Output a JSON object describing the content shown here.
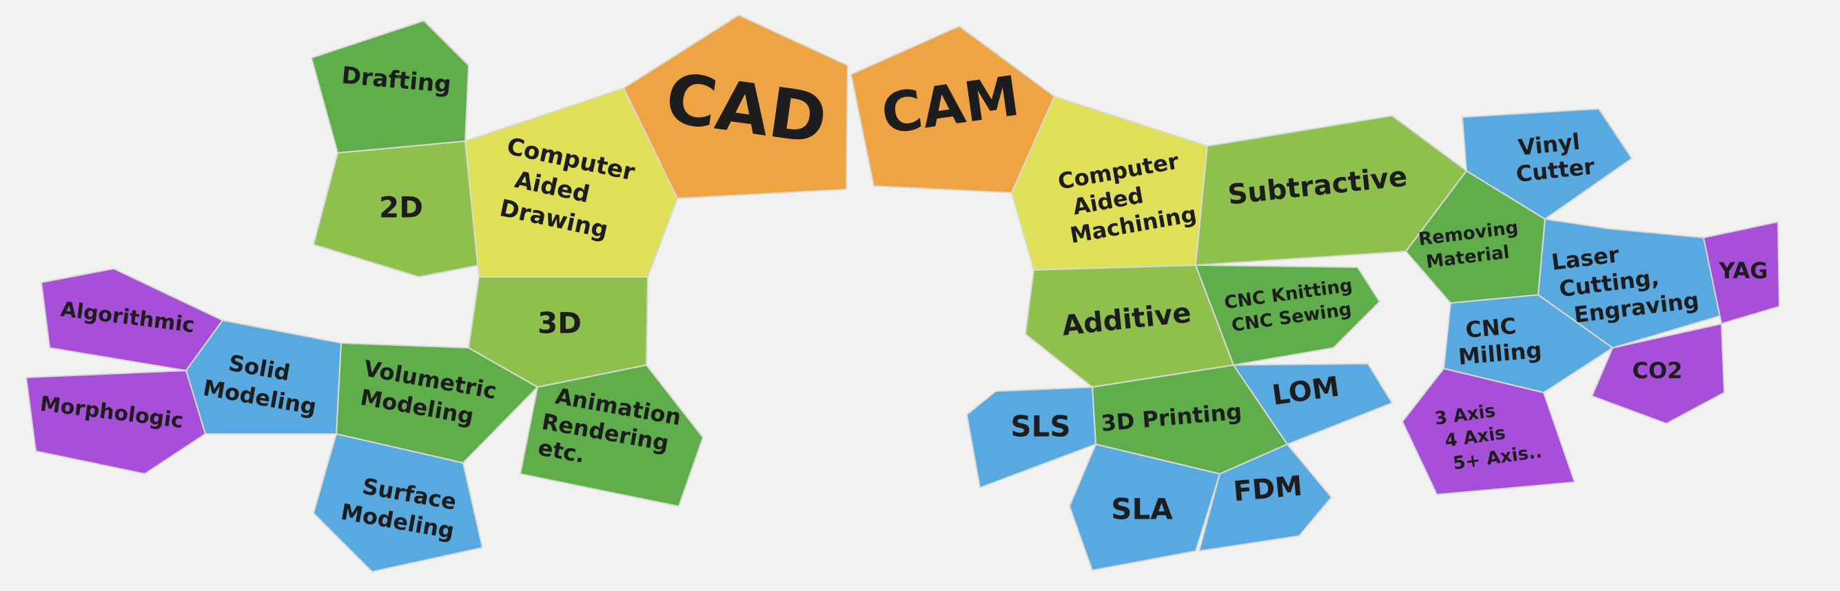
{
  "colors": {
    "orange": "#efa444",
    "yellow": "#dfdf58",
    "lightgreen": "#8fc04e",
    "green": "#5fae4b",
    "blue": "#58a9e0",
    "purple": "#a84fd9",
    "text": "#1d1d1d",
    "background": "#f1f1f0"
  },
  "cad": {
    "title": "CAD",
    "computer_aided_drawing": [
      "Computer",
      "Aided",
      "Drawing"
    ],
    "drafting": "Drafting",
    "two_d": "2D",
    "three_d": "3D",
    "animation": [
      "Animation",
      "Rendering",
      "etc."
    ],
    "volumetric": [
      "Volumetric",
      "Modeling"
    ],
    "solid": [
      "Solid",
      "Modeling"
    ],
    "surface": [
      "Surface",
      "Modeling"
    ],
    "algorithmic": "Algorithmic",
    "morphologic": "Morphologic"
  },
  "cam": {
    "title": "CAM",
    "computer_aided_machining": [
      "Computer",
      "Aided",
      "Machining"
    ],
    "subtractive": "Subtractive",
    "additive": "Additive",
    "cnc_knitting": [
      "CNC Knitting",
      "CNC Sewing"
    ],
    "three_d_printing": "3D Printing",
    "sls": "SLS",
    "lom": "LOM",
    "sla": "SLA",
    "fdm": "FDM",
    "removing_material": [
      "Removing",
      "Material"
    ],
    "vinyl_cutter": [
      "Vinyl",
      "Cutter"
    ],
    "laser": [
      "Laser",
      "Cutting,",
      "Engraving"
    ],
    "yag": "YAG",
    "co2": "CO2",
    "cnc_milling": [
      "CNC",
      "Milling"
    ],
    "axes": [
      "3 Axis",
      "4 Axis",
      "5+ Axis.."
    ]
  }
}
